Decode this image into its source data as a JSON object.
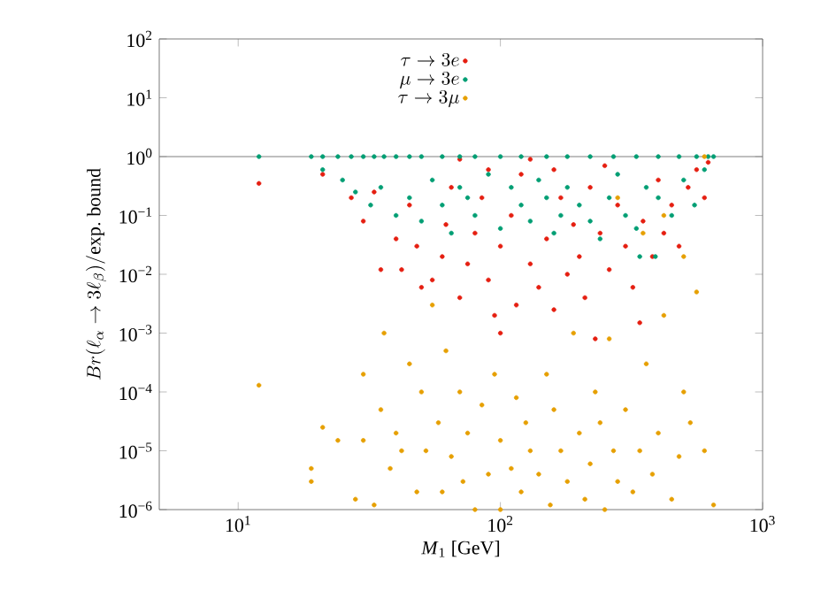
{
  "chart_data": {
    "type": "scatter",
    "xlabel": "*M*$_{1}$ [GeV]",
    "ylabel": "Br(\\ell_\\alpha \\to 3\\ell_\\beta)/\\mathrm{exp.\\ bound}",
    "log": "xy",
    "grid": false,
    "legend": "top",
    "marker": "circle",
    "xlim": [
      5,
      1000
    ],
    "xticks": [
      {
        "value": 10,
        "label": "10$^{1}$"
      },
      {
        "value": 100,
        "label": "10$^{2}$"
      },
      {
        "value": 1000,
        "label": "10$^{3}$"
      }
    ],
    "ylim": [
      1e-06,
      100
    ],
    "yticks": [
      {
        "value": 1e-06,
        "label": "10$^{−6}$"
      },
      {
        "value": 1e-05,
        "label": "10$^{−5}$"
      },
      {
        "value": 0.0001,
        "label": "10$^{−4}$"
      },
      {
        "value": 0.001,
        "label": "10$^{−3}$"
      },
      {
        "value": 0.01,
        "label": "10$^{−2}$"
      },
      {
        "value": 0.1,
        "label": "10$^{−1}$"
      },
      {
        "value": 1,
        "label": "10$^{0}$"
      },
      {
        "value": 10,
        "label": "10$^{1}$"
      },
      {
        "value": 100,
        "label": "10$^{2}$"
      }
    ],
    "ref_lines": [
      {
        "axis": "y",
        "value": 1,
        "color": "#808080"
      }
    ],
    "series": [
      {
        "name": "\\tau \\to 3e",
        "color": "#e51e10",
        "x": [
          12,
          21,
          27,
          30,
          33,
          35,
          40,
          42,
          45,
          48,
          50,
          55,
          60,
          62,
          65,
          70,
          75,
          80,
          85,
          90,
          95,
          100,
          100,
          110,
          115,
          120,
          130,
          140,
          150,
          160,
          170,
          180,
          190,
          200,
          210,
          220,
          230,
          240,
          260,
          280,
          300,
          320,
          340,
          350,
          380,
          400,
          420,
          450,
          480,
          520,
          560,
          600,
          620,
          160,
          250,
          90,
          70,
          130
        ],
        "values": [
          0.35,
          0.5,
          0.2,
          0.08,
          0.25,
          0.012,
          0.04,
          0.012,
          0.15,
          0.03,
          0.006,
          0.008,
          0.02,
          0.07,
          0.3,
          0.004,
          0.015,
          0.05,
          0.2,
          0.008,
          0.002,
          0.001,
          0.03,
          0.1,
          0.003,
          0.5,
          0.015,
          0.006,
          0.04,
          0.0025,
          0.2,
          0.01,
          0.07,
          0.02,
          0.004,
          0.3,
          0.0008,
          0.05,
          0.012,
          0.15,
          0.03,
          0.006,
          0.0015,
          0.08,
          0.02,
          0.4,
          0.05,
          0.15,
          0.03,
          0.3,
          0.6,
          0.2,
          0.8,
          0.6,
          0.7,
          0.6,
          0.9,
          0.9
        ]
      },
      {
        "name": "\\mu \\to 3e",
        "color": "#009e73",
        "x": [
          12,
          19,
          21,
          24,
          27,
          30,
          33,
          36,
          40,
          45,
          50,
          60,
          70,
          80,
          100,
          120,
          150,
          180,
          220,
          270,
          330,
          400,
          480,
          560,
          620,
          650,
          21,
          25,
          28,
          32,
          35,
          40,
          45,
          50,
          55,
          60,
          65,
          70,
          75,
          80,
          90,
          100,
          110,
          120,
          130,
          140,
          150,
          160,
          170,
          180,
          200,
          220,
          240,
          260,
          280,
          300,
          330,
          360,
          400,
          450,
          500,
          550,
          600,
          340,
          390
        ],
        "values": [
          1,
          1,
          1,
          1,
          1,
          1,
          1,
          1,
          1,
          1,
          1,
          1,
          1,
          1,
          1,
          1,
          1,
          1,
          1,
          1,
          1,
          1,
          1,
          1,
          1,
          1,
          0.6,
          0.4,
          0.25,
          0.15,
          0.3,
          0.1,
          0.2,
          0.08,
          0.4,
          0.15,
          0.05,
          0.3,
          0.2,
          0.1,
          0.5,
          0.06,
          0.3,
          0.15,
          0.08,
          0.4,
          0.2,
          0.05,
          0.1,
          0.3,
          0.15,
          0.08,
          0.04,
          0.2,
          0.5,
          0.1,
          0.06,
          0.3,
          0.2,
          0.1,
          0.4,
          0.15,
          0.6,
          0.02,
          0.02
        ]
      },
      {
        "name": "\\tau \\to 3\\mu",
        "color": "#e69f00",
        "x": [
          12,
          19,
          19,
          21,
          24,
          28,
          30,
          30,
          33,
          35,
          36,
          38,
          40,
          42,
          45,
          48,
          50,
          52,
          55,
          58,
          60,
          62,
          65,
          70,
          72,
          75,
          80,
          85,
          90,
          95,
          100,
          100,
          110,
          115,
          120,
          125,
          130,
          140,
          150,
          155,
          160,
          170,
          180,
          190,
          200,
          210,
          220,
          230,
          240,
          250,
          260,
          270,
          280,
          300,
          320,
          340,
          360,
          380,
          400,
          420,
          450,
          480,
          500,
          530,
          560,
          600,
          650,
          500,
          420,
          280,
          600,
          350
        ],
        "values": [
          0.00013,
          5e-06,
          3e-06,
          2.5e-05,
          1.5e-05,
          1.5e-06,
          1.5e-05,
          0.0002,
          1.2e-06,
          5e-05,
          0.001,
          5e-06,
          2e-05,
          1e-05,
          0.0003,
          2e-06,
          0.0001,
          1e-05,
          0.003,
          3e-05,
          2e-06,
          0.0005,
          8e-06,
          0.0001,
          3e-06,
          2e-05,
          1e-06,
          6e-05,
          4e-06,
          0.0002,
          1.5e-05,
          1e-06,
          5e-06,
          8e-05,
          2e-06,
          3e-05,
          1e-05,
          4e-06,
          0.0002,
          1.2e-06,
          5e-05,
          1e-05,
          3e-06,
          0.001,
          2e-05,
          1.5e-06,
          6e-06,
          0.0001,
          3e-05,
          1e-06,
          0.0008,
          1e-05,
          3e-06,
          5e-05,
          2e-06,
          1e-05,
          0.0003,
          4e-06,
          2e-05,
          0.002,
          1.5e-06,
          8e-06,
          0.0001,
          3e-05,
          0.005,
          1e-05,
          1.2e-06,
          0.02,
          0.1,
          0.2,
          1,
          0.05
        ]
      }
    ]
  }
}
